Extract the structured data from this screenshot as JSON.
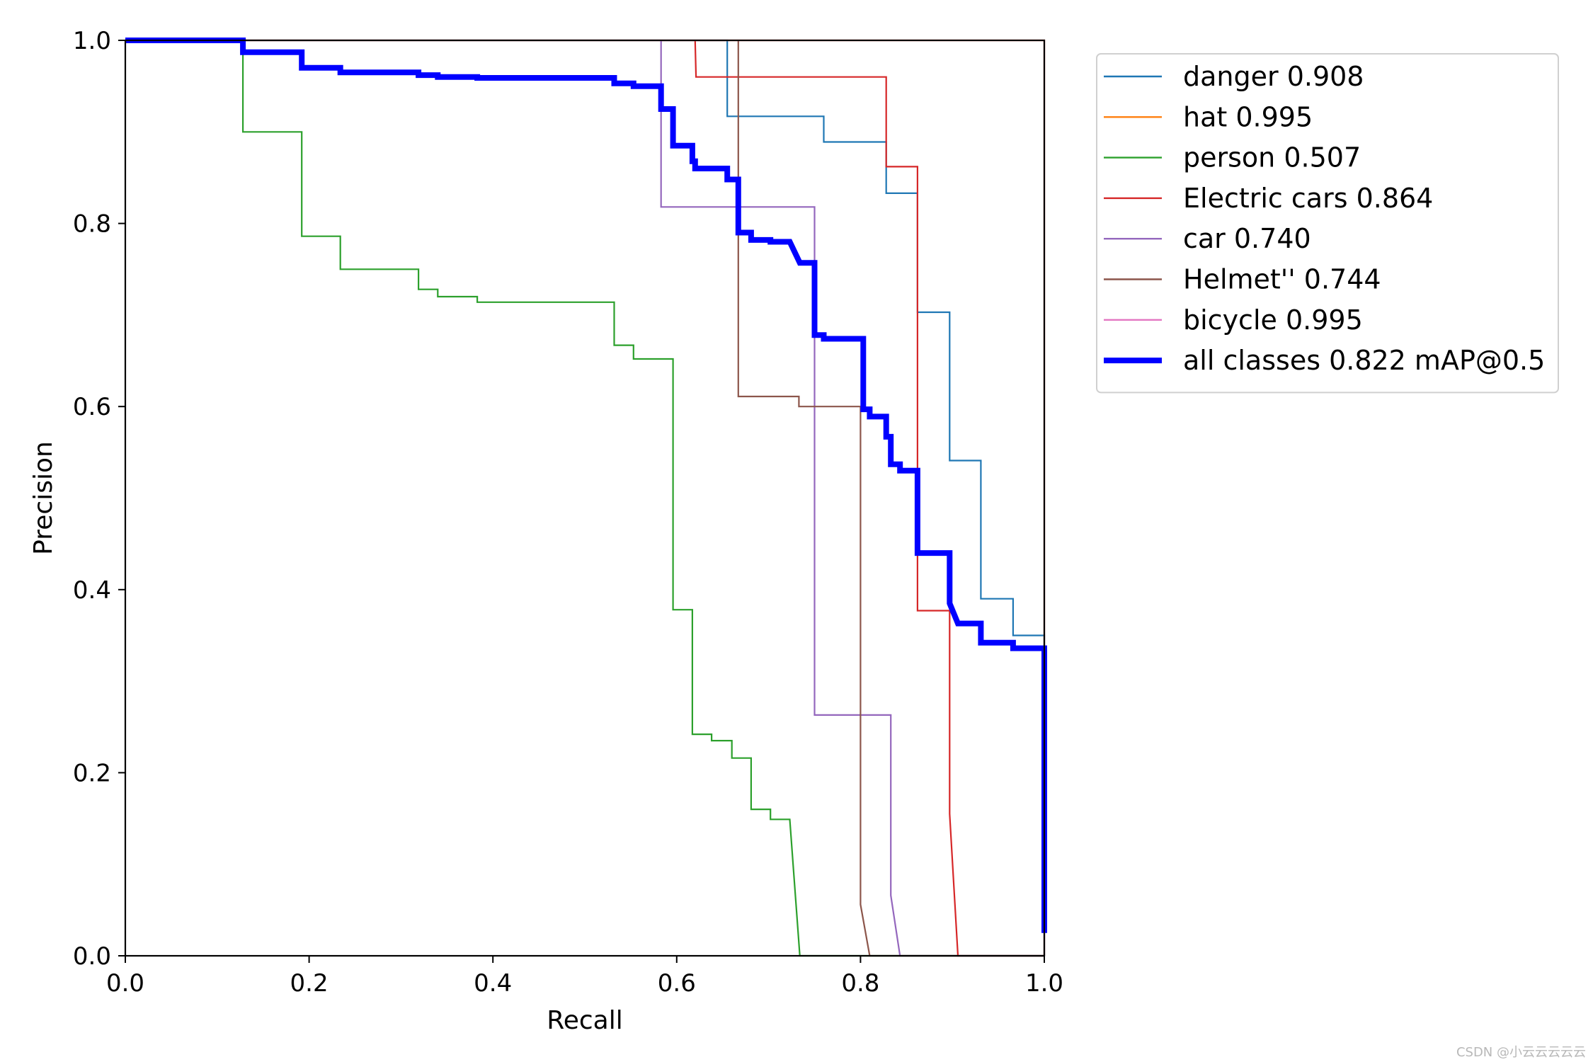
{
  "chart_data": {
    "type": "line",
    "title": "",
    "xlabel": "Recall",
    "ylabel": "Precision",
    "xlim": [
      0,
      1
    ],
    "ylim": [
      0,
      1
    ],
    "xticks": [
      "0.0",
      "0.2",
      "0.4",
      "0.6",
      "0.8",
      "1.0"
    ],
    "yticks": [
      "0.0",
      "0.2",
      "0.4",
      "0.6",
      "0.8",
      "1.0"
    ],
    "grid": false,
    "legend_position": "outside-top-right",
    "series": [
      {
        "name": "danger 0.908",
        "color": "#1f77b4",
        "width": "thin",
        "points": [
          [
            0,
            1
          ],
          [
            0.655,
            1
          ],
          [
            0.655,
            0.917
          ],
          [
            0.76,
            0.917
          ],
          [
            0.76,
            0.889
          ],
          [
            0.828,
            0.889
          ],
          [
            0.828,
            0.833
          ],
          [
            0.862,
            0.833
          ],
          [
            0.862,
            0.703
          ],
          [
            0.897,
            0.703
          ],
          [
            0.897,
            0.541
          ],
          [
            0.931,
            0.541
          ],
          [
            0.931,
            0.39
          ],
          [
            0.966,
            0.39
          ],
          [
            0.966,
            0.35
          ],
          [
            1.0,
            0.35
          ],
          [
            1.0,
            0
          ]
        ]
      },
      {
        "name": "hat 0.995",
        "color": "#ff7f0e",
        "width": "thin",
        "points": [
          [
            0,
            1
          ],
          [
            1.0,
            1
          ],
          [
            1.0,
            0
          ]
        ]
      },
      {
        "name": "person 0.507",
        "color": "#2ca02c",
        "width": "thin",
        "points": [
          [
            0,
            1
          ],
          [
            0.128,
            1
          ],
          [
            0.128,
            0.9
          ],
          [
            0.192,
            0.9
          ],
          [
            0.192,
            0.786
          ],
          [
            0.234,
            0.786
          ],
          [
            0.234,
            0.75
          ],
          [
            0.319,
            0.75
          ],
          [
            0.319,
            0.728
          ],
          [
            0.34,
            0.728
          ],
          [
            0.34,
            0.72
          ],
          [
            0.383,
            0.72
          ],
          [
            0.383,
            0.714
          ],
          [
            0.532,
            0.714
          ],
          [
            0.532,
            0.667
          ],
          [
            0.553,
            0.667
          ],
          [
            0.553,
            0.652
          ],
          [
            0.596,
            0.652
          ],
          [
            0.596,
            0.378
          ],
          [
            0.617,
            0.378
          ],
          [
            0.617,
            0.242
          ],
          [
            0.638,
            0.242
          ],
          [
            0.638,
            0.235
          ],
          [
            0.66,
            0.235
          ],
          [
            0.66,
            0.216
          ],
          [
            0.681,
            0.216
          ],
          [
            0.681,
            0.16
          ],
          [
            0.702,
            0.16
          ],
          [
            0.702,
            0.149
          ],
          [
            0.723,
            0.149
          ],
          [
            0.734,
            0.0
          ],
          [
            1.0,
            0.0
          ]
        ]
      },
      {
        "name": "Electric cars 0.864",
        "color": "#d62728",
        "width": "thin",
        "points": [
          [
            0.62,
            1
          ],
          [
            0.621,
            0.96
          ],
          [
            0.828,
            0.96
          ],
          [
            0.828,
            0.862
          ],
          [
            0.862,
            0.862
          ],
          [
            0.862,
            0.377
          ],
          [
            0.897,
            0.377
          ],
          [
            0.897,
            0.155
          ],
          [
            0.906,
            0.0
          ],
          [
            1.0,
            0.0
          ]
        ]
      },
      {
        "name": "car 0.740",
        "color": "#9467bd",
        "width": "thin",
        "points": [
          [
            0.583,
            1
          ],
          [
            0.583,
            0.818
          ],
          [
            0.75,
            0.818
          ],
          [
            0.75,
            0.263
          ],
          [
            0.833,
            0.263
          ],
          [
            0.833,
            0.066
          ],
          [
            0.843,
            0.0
          ],
          [
            1.0,
            0.0
          ]
        ]
      },
      {
        "name": "Helmet'' 0.744",
        "color": "#8c564b",
        "width": "thin",
        "points": [
          [
            0.667,
            1
          ],
          [
            0.667,
            0.611
          ],
          [
            0.733,
            0.611
          ],
          [
            0.733,
            0.6
          ],
          [
            0.8,
            0.6
          ],
          [
            0.8,
            0.056
          ],
          [
            0.81,
            0.0
          ],
          [
            1.0,
            0.0
          ]
        ]
      },
      {
        "name": "bicycle 0.995",
        "color": "#e377c2",
        "width": "thin",
        "points": [
          [
            0,
            1
          ],
          [
            1.0,
            1
          ],
          [
            1.0,
            0
          ]
        ]
      },
      {
        "name": "all classes 0.822 mAP@0.5",
        "color": "#0000ff",
        "width": "thick",
        "points": [
          [
            0,
            1
          ],
          [
            0.128,
            1
          ],
          [
            0.128,
            0.987
          ],
          [
            0.192,
            0.987
          ],
          [
            0.192,
            0.97
          ],
          [
            0.234,
            0.97
          ],
          [
            0.234,
            0.965
          ],
          [
            0.319,
            0.965
          ],
          [
            0.319,
            0.962
          ],
          [
            0.34,
            0.962
          ],
          [
            0.34,
            0.96
          ],
          [
            0.383,
            0.96
          ],
          [
            0.383,
            0.959
          ],
          [
            0.532,
            0.959
          ],
          [
            0.532,
            0.953
          ],
          [
            0.553,
            0.953
          ],
          [
            0.553,
            0.95
          ],
          [
            0.583,
            0.95
          ],
          [
            0.583,
            0.925
          ],
          [
            0.596,
            0.925
          ],
          [
            0.596,
            0.885
          ],
          [
            0.617,
            0.885
          ],
          [
            0.617,
            0.868
          ],
          [
            0.62,
            0.868
          ],
          [
            0.62,
            0.86
          ],
          [
            0.655,
            0.86
          ],
          [
            0.655,
            0.848
          ],
          [
            0.667,
            0.848
          ],
          [
            0.667,
            0.79
          ],
          [
            0.681,
            0.79
          ],
          [
            0.681,
            0.782
          ],
          [
            0.702,
            0.782
          ],
          [
            0.702,
            0.78
          ],
          [
            0.723,
            0.78
          ],
          [
            0.734,
            0.757
          ],
          [
            0.75,
            0.757
          ],
          [
            0.75,
            0.678
          ],
          [
            0.76,
            0.678
          ],
          [
            0.76,
            0.674
          ],
          [
            0.803,
            0.674
          ],
          [
            0.803,
            0.597
          ],
          [
            0.81,
            0.597
          ],
          [
            0.81,
            0.589
          ],
          [
            0.828,
            0.589
          ],
          [
            0.828,
            0.567
          ],
          [
            0.833,
            0.567
          ],
          [
            0.833,
            0.537
          ],
          [
            0.843,
            0.537
          ],
          [
            0.843,
            0.53
          ],
          [
            0.862,
            0.53
          ],
          [
            0.862,
            0.44
          ],
          [
            0.897,
            0.44
          ],
          [
            0.897,
            0.385
          ],
          [
            0.906,
            0.363
          ],
          [
            0.931,
            0.363
          ],
          [
            0.931,
            0.342
          ],
          [
            0.966,
            0.342
          ],
          [
            0.966,
            0.336
          ],
          [
            1.0,
            0.336
          ],
          [
            1.0,
            0.025
          ]
        ]
      }
    ]
  },
  "watermark": "CSDN @小云云云云云"
}
